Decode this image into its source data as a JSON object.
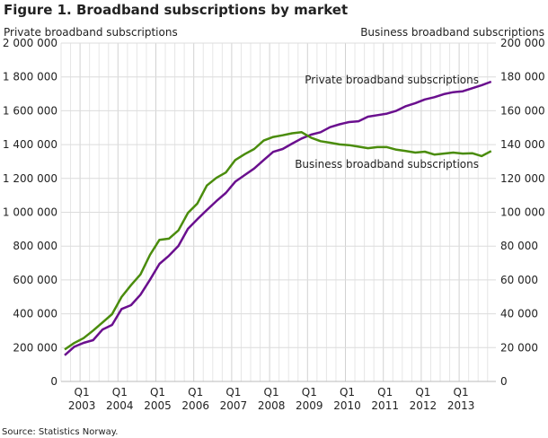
{
  "chart_data": {
    "type": "line",
    "title": "Figure 1. Broadband subscriptions by market",
    "ylabel_left": "Private broadband subscriptions",
    "ylabel_right": "Business broadband subscriptions",
    "source": "Source: Statistics Norway.",
    "ylim_left": [
      0,
      2000000
    ],
    "ylim_right": [
      0,
      200000
    ],
    "yticks_left": [
      "0",
      "200 000",
      "400 000",
      "600 000",
      "800 000",
      "1 000 000",
      "1 200 000",
      "1 400 000",
      "1 600 000",
      "1 800 000",
      "2 000 000"
    ],
    "yticks_right": [
      "0",
      "20 000",
      "40 000",
      "60 000",
      "80 000",
      "100 000",
      "120 000",
      "140 000",
      "160 000",
      "180 000",
      "200 000"
    ],
    "x_start": "2002Q3",
    "x_end": "2013Q4",
    "xtick_quarter_label": "Q1",
    "xtick_years": [
      "2003",
      "2004",
      "2005",
      "2006",
      "2007",
      "2008",
      "2009",
      "2010",
      "2011",
      "2012",
      "2013"
    ],
    "grid": true,
    "series": [
      {
        "name": "Private broadband subscriptions",
        "axis": "left",
        "color": "#6a0f8e",
        "annotation": "Private broadband subscriptions",
        "values": [
          155000,
          205000,
          228000,
          244000,
          307000,
          334000,
          428000,
          451000,
          513000,
          601000,
          695000,
          743000,
          801000,
          902000,
          959000,
          1013000,
          1066000,
          1114000,
          1181000,
          1220000,
          1259000,
          1309000,
          1357000,
          1374000,
          1406000,
          1436000,
          1459000,
          1473000,
          1503000,
          1520000,
          1533000,
          1538000,
          1565000,
          1574000,
          1583000,
          1600000,
          1627000,
          1645000,
          1667000,
          1680000,
          1698000,
          1710000,
          1715000,
          1733000,
          1751000,
          1772000
        ]
      },
      {
        "name": "Business broadband subscriptions",
        "axis": "right",
        "color": "#4a8c0c",
        "annotation": "Business broadband subscriptions",
        "values": [
          18900,
          22700,
          25600,
          30100,
          34900,
          39800,
          49900,
          56900,
          63300,
          74800,
          83700,
          84400,
          89300,
          99600,
          105200,
          115800,
          120300,
          123500,
          130900,
          134400,
          137400,
          142400,
          144500,
          145500,
          146700,
          147300,
          144100,
          142000,
          141100,
          140100,
          139700,
          138800,
          137900,
          138500,
          138500,
          137000,
          136200,
          135300,
          135800,
          134100,
          134700,
          135300,
          134700,
          134900,
          133200,
          136200
        ]
      }
    ]
  }
}
